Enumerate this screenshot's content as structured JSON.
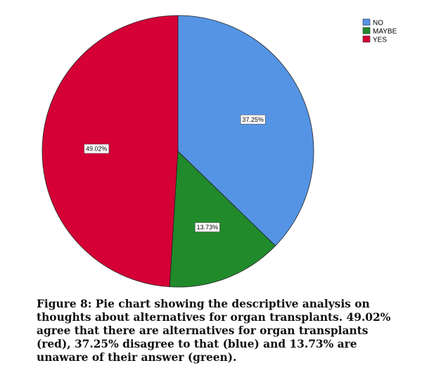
{
  "chart_data": {
    "type": "pie",
    "slices": [
      {
        "label": "NO",
        "value": 37.25,
        "display": "37.25%",
        "color": "#5594e4"
      },
      {
        "label": "MAYBE",
        "value": 13.73,
        "display": "13.73%",
        "color": "#218a2b"
      },
      {
        "label": "YES",
        "value": 49.02,
        "display": "49.02%",
        "color": "#d40036"
      }
    ],
    "start_angle_deg": 0,
    "direction": "clockwise",
    "legend": {
      "placement": "top-right",
      "entries": [
        "NO",
        "MAYBE",
        "YES"
      ]
    }
  },
  "caption": "Figure 8: Pie chart showing the descriptive analysis on thoughts about alternatives for organ transplants. 49.02% agree that there are alternatives for organ transplants (red), 37.25% disagree to that (blue) and 13.73% are unaware of their answer (green)."
}
